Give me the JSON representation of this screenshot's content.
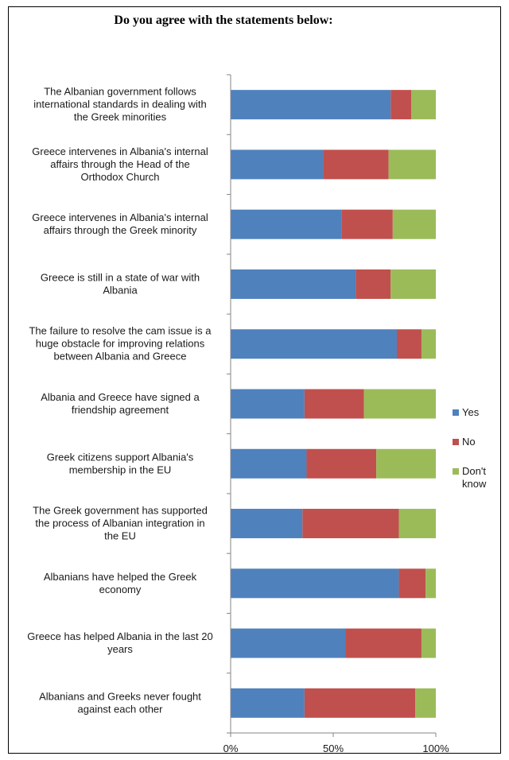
{
  "chart_data": {
    "type": "bar",
    "orientation": "horizontal",
    "stacked": "percent",
    "title": "Do you agree with the statements below:",
    "categories": [
      [
        "The Albanian government follows",
        "international standards in dealing with",
        "the Greek minorities"
      ],
      [
        "Greece intervenes in Albania's internal",
        "affairs through the Head of the",
        "Orthodox Church"
      ],
      [
        "Greece intervenes in Albania's internal",
        "affairs through the Greek minority"
      ],
      [
        "Greece is still in a state of war with",
        "Albania"
      ],
      [
        "The failure to resolve the cam issue is a",
        "huge obstacle for improving relations",
        "between Albania and Greece"
      ],
      [
        "Albania and Greece have signed a",
        "friendship agreement"
      ],
      [
        "Greek citizens support Albania's",
        "membership in the EU"
      ],
      [
        "The Greek government has supported",
        "the process of Albanian integration in",
        "the EU"
      ],
      [
        "Albanians have helped the Greek",
        "economy"
      ],
      [
        "Greece has helped Albania in the last 20",
        "years"
      ],
      [
        "Albanians and Greeks never fought",
        "against each other"
      ]
    ],
    "series": [
      {
        "name": "Yes",
        "color": "#4f81bd",
        "values": [
          78,
          45,
          54,
          61,
          81,
          36,
          37,
          35,
          82,
          56,
          36
        ]
      },
      {
        "name": "No",
        "color": "#c0504d",
        "values": [
          10,
          32,
          25,
          17,
          12,
          29,
          34,
          47,
          13,
          37,
          54
        ]
      },
      {
        "name": "Don't know",
        "legend_lines": [
          "Don't",
          "know"
        ],
        "color": "#9bbb59",
        "values": [
          12,
          23,
          21,
          22,
          7,
          35,
          29,
          18,
          5,
          7,
          10
        ]
      }
    ],
    "xlim": [
      0,
      100
    ],
    "xticks": [
      "0%",
      "50%",
      "100%"
    ],
    "legend_position": "right",
    "grid": false
  }
}
